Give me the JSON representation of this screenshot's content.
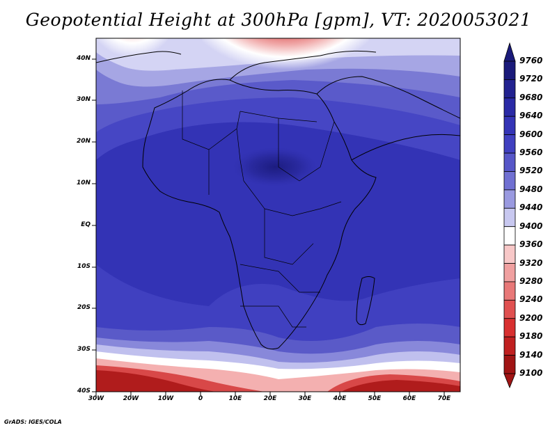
{
  "title": "Geopotential Height at 300hPa [gpm], VT: 2020053021",
  "footer": "GrADS: IGES/COLA",
  "map": {
    "lat_labels": [
      "40N",
      "30N",
      "20N",
      "10N",
      "EQ",
      "10S",
      "20S",
      "30S",
      "40S"
    ],
    "lon_labels": [
      "30W",
      "20W",
      "10W",
      "0",
      "10E",
      "20E",
      "30E",
      "40E",
      "50E",
      "60E",
      "70E"
    ]
  },
  "colorbar": {
    "levels": [
      "9760",
      "9720",
      "9680",
      "9640",
      "9600",
      "9560",
      "9520",
      "9480",
      "9440",
      "9400",
      "9360",
      "9320",
      "9280",
      "9240",
      "9200",
      "9180",
      "9140",
      "9100"
    ],
    "colors": [
      "#1a1a7a",
      "#222290",
      "#2a2aa6",
      "#3434b6",
      "#4040c0",
      "#5656c8",
      "#7070d2",
      "#9a9ae0",
      "#c8c8f0",
      "#ffffff",
      "#f8c8c8",
      "#f0a0a0",
      "#e87878",
      "#e05050",
      "#d83030",
      "#c02020",
      "#a01414"
    ]
  }
}
